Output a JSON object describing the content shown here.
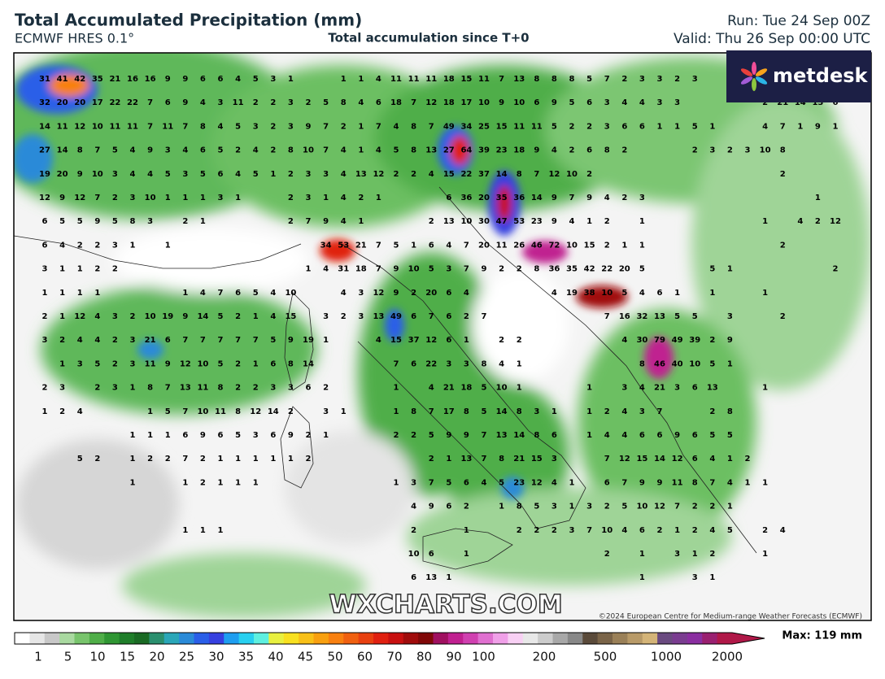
{
  "header": {
    "title": "Total Accumulated Precipitation (mm)",
    "model": "ECMWF HRES 0.1°",
    "subtitle": "Total accumulation since T+0",
    "run": "Run: Tue 24 Sep 00Z",
    "valid": "Valid: Thu 26 Sep 00:00 UTC"
  },
  "logo": "metdesk",
  "watermark": "WXCHARTS.COM",
  "copyright": "©2024 European Centre for Medium-range Weather Forecasts (ECMWF)",
  "max_label": "Max: 119 mm",
  "colorbar": {
    "labels": [
      1,
      5,
      10,
      15,
      20,
      25,
      30,
      35,
      40,
      45,
      50,
      60,
      70,
      80,
      90,
      100,
      200,
      500,
      1000,
      2000
    ],
    "colors": [
      "#ffffff",
      "#e6e6e6",
      "#c8c8c8",
      "#a9d9a0",
      "#78c46c",
      "#4fae48",
      "#2f9633",
      "#1f7e2a",
      "#1a6a24",
      "#2a8f6e",
      "#2aa6b8",
      "#2a8ad8",
      "#2a5ee8",
      "#3640e0",
      "#1e9ef0",
      "#28d0f0",
      "#5ef0e0",
      "#e8f040",
      "#f8e020",
      "#f8c018",
      "#f8a010",
      "#f88010",
      "#f06010",
      "#e84010",
      "#e02010",
      "#c81010",
      "#a00c0c",
      "#800808",
      "#a01060",
      "#c02090",
      "#d040b0",
      "#e070d0",
      "#f0a0e8",
      "#f8d0f4",
      "#e8e8e8",
      "#cccccc",
      "#a8a8a8",
      "#888888",
      "#5a4a3a",
      "#7a6448",
      "#9a8058",
      "#b89a68",
      "#d4b478",
      "#6a4a80",
      "#7a3c90",
      "#8a2ea0",
      "#9a2070",
      "#b01848"
    ]
  },
  "map": {
    "grid_values": [
      [
        31,
        41,
        42,
        35,
        21,
        16,
        16,
        9,
        9,
        6,
        6,
        4,
        5,
        3,
        1,
        null,
        null,
        1,
        1,
        4,
        11,
        11,
        11,
        18,
        15,
        11,
        7,
        13,
        8,
        8,
        8,
        5,
        7,
        2,
        3,
        3,
        2,
        3,
        null,
        null,
        null,
        null,
        null,
        null,
        null,
        null
      ],
      [
        32,
        20,
        20,
        17,
        22,
        22,
        7,
        6,
        9,
        4,
        3,
        11,
        2,
        2,
        3,
        2,
        5,
        8,
        4,
        6,
        18,
        7,
        12,
        18,
        17,
        10,
        9,
        10,
        6,
        9,
        5,
        6,
        3,
        4,
        4,
        3,
        3,
        null,
        null,
        null,
        null,
        2,
        21,
        14,
        13,
        6
      ],
      [
        14,
        11,
        12,
        10,
        11,
        11,
        7,
        11,
        7,
        8,
        4,
        5,
        3,
        2,
        3,
        9,
        7,
        2,
        1,
        7,
        4,
        8,
        7,
        49,
        34,
        25,
        15,
        11,
        11,
        5,
        2,
        2,
        3,
        6,
        6,
        1,
        1,
        5,
        1,
        null,
        null,
        4,
        7,
        1,
        9,
        1
      ],
      [
        27,
        14,
        8,
        7,
        5,
        4,
        9,
        3,
        4,
        6,
        5,
        2,
        4,
        2,
        8,
        10,
        7,
        4,
        1,
        4,
        5,
        8,
        13,
        27,
        64,
        39,
        23,
        18,
        9,
        4,
        2,
        6,
        8,
        2,
        null,
        null,
        null,
        2,
        3,
        2,
        3,
        10,
        8,
        null,
        null,
        null
      ],
      [
        19,
        20,
        9,
        10,
        3,
        4,
        4,
        5,
        3,
        5,
        6,
        4,
        5,
        1,
        2,
        3,
        3,
        4,
        13,
        12,
        2,
        2,
        4,
        15,
        22,
        37,
        14,
        8,
        7,
        12,
        10,
        2,
        null,
        null,
        null,
        null,
        null,
        null,
        null,
        null,
        null,
        null,
        2,
        null,
        null,
        null
      ],
      [
        12,
        9,
        12,
        7,
        2,
        3,
        10,
        1,
        1,
        1,
        3,
        1,
        null,
        null,
        2,
        3,
        1,
        4,
        2,
        1,
        null,
        null,
        null,
        6,
        36,
        20,
        35,
        36,
        14,
        9,
        7,
        9,
        4,
        2,
        3,
        null,
        null,
        null,
        null,
        null,
        null,
        null,
        null,
        null,
        1,
        null
      ],
      [
        6,
        5,
        5,
        9,
        5,
        8,
        3,
        null,
        2,
        1,
        null,
        null,
        null,
        null,
        2,
        7,
        9,
        4,
        1,
        null,
        null,
        null,
        2,
        13,
        10,
        30,
        47,
        53,
        23,
        9,
        4,
        1,
        2,
        null,
        1,
        null,
        null,
        null,
        null,
        null,
        null,
        1,
        null,
        4,
        2,
        12
      ],
      [
        6,
        4,
        2,
        2,
        3,
        1,
        null,
        1,
        null,
        null,
        null,
        null,
        null,
        null,
        null,
        null,
        34,
        53,
        21,
        7,
        5,
        1,
        6,
        4,
        7,
        20,
        11,
        26,
        46,
        72,
        10,
        15,
        2,
        1,
        1,
        null,
        null,
        null,
        null,
        null,
        null,
        null,
        2,
        null,
        null,
        null
      ],
      [
        3,
        1,
        1,
        2,
        2,
        null,
        null,
        null,
        null,
        null,
        null,
        null,
        null,
        null,
        null,
        1,
        4,
        31,
        18,
        7,
        9,
        10,
        5,
        3,
        7,
        9,
        2,
        2,
        8,
        36,
        35,
        42,
        22,
        20,
        5,
        null,
        null,
        null,
        5,
        1,
        null,
        null,
        null,
        null,
        null,
        2
      ],
      [
        1,
        1,
        1,
        1,
        null,
        null,
        null,
        null,
        1,
        4,
        7,
        6,
        5,
        4,
        10,
        null,
        null,
        4,
        3,
        12,
        9,
        2,
        20,
        6,
        4,
        null,
        null,
        null,
        null,
        4,
        19,
        38,
        10,
        5,
        4,
        6,
        1,
        null,
        1,
        null,
        null,
        1,
        null,
        null,
        null,
        null
      ],
      [
        2,
        1,
        12,
        4,
        3,
        2,
        10,
        19,
        9,
        14,
        5,
        2,
        1,
        4,
        15,
        null,
        3,
        2,
        3,
        13,
        49,
        6,
        7,
        6,
        2,
        7,
        null,
        null,
        null,
        null,
        null,
        null,
        7,
        16,
        32,
        13,
        5,
        5,
        null,
        3,
        null,
        null,
        2,
        null,
        null,
        null
      ],
      [
        3,
        2,
        4,
        4,
        2,
        3,
        21,
        6,
        7,
        7,
        7,
        7,
        7,
        5,
        9,
        19,
        1,
        null,
        null,
        4,
        15,
        37,
        12,
        6,
        1,
        null,
        2,
        2,
        null,
        null,
        null,
        null,
        null,
        4,
        30,
        79,
        49,
        39,
        2,
        9,
        null,
        null,
        null,
        null,
        null,
        null
      ],
      [
        null,
        1,
        3,
        5,
        2,
        3,
        11,
        9,
        12,
        10,
        5,
        2,
        1,
        6,
        8,
        14,
        null,
        null,
        null,
        null,
        7,
        6,
        22,
        3,
        3,
        8,
        4,
        1,
        null,
        null,
        null,
        null,
        null,
        null,
        8,
        46,
        40,
        10,
        5,
        1,
        null,
        null,
        null,
        null,
        null,
        null
      ],
      [
        2,
        3,
        null,
        2,
        3,
        1,
        8,
        7,
        13,
        11,
        8,
        2,
        2,
        3,
        3,
        6,
        2,
        null,
        null,
        null,
        1,
        null,
        4,
        21,
        18,
        5,
        10,
        1,
        null,
        null,
        null,
        1,
        null,
        3,
        4,
        21,
        3,
        6,
        13,
        null,
        null,
        1,
        null,
        null,
        null,
        null
      ],
      [
        1,
        2,
        4,
        null,
        null,
        null,
        1,
        5,
        7,
        10,
        11,
        8,
        12,
        14,
        2,
        null,
        3,
        1,
        null,
        null,
        1,
        8,
        7,
        17,
        8,
        5,
        14,
        8,
        3,
        1,
        null,
        1,
        2,
        4,
        3,
        7,
        null,
        null,
        2,
        8,
        null,
        null,
        null,
        null,
        null,
        null
      ],
      [
        null,
        null,
        null,
        null,
        null,
        1,
        1,
        1,
        6,
        9,
        6,
        5,
        3,
        6,
        9,
        2,
        1,
        null,
        null,
        null,
        2,
        2,
        5,
        9,
        9,
        7,
        13,
        14,
        8,
        6,
        null,
        1,
        4,
        4,
        6,
        6,
        9,
        6,
        5,
        5,
        null,
        null,
        null,
        null,
        null,
        null
      ],
      [
        null,
        null,
        5,
        2,
        null,
        1,
        2,
        2,
        7,
        2,
        1,
        1,
        1,
        1,
        1,
        2,
        null,
        null,
        null,
        null,
        null,
        null,
        2,
        1,
        13,
        7,
        8,
        21,
        15,
        3,
        null,
        null,
        7,
        12,
        15,
        14,
        12,
        6,
        4,
        1,
        2,
        null,
        null,
        null,
        null,
        null
      ],
      [
        null,
        null,
        null,
        null,
        null,
        1,
        null,
        null,
        1,
        2,
        1,
        1,
        1,
        null,
        null,
        null,
        null,
        null,
        null,
        null,
        1,
        3,
        7,
        5,
        6,
        4,
        5,
        23,
        12,
        4,
        1,
        null,
        6,
        7,
        9,
        9,
        11,
        8,
        7,
        4,
        1,
        1,
        null,
        null,
        null,
        null
      ],
      [
        null,
        null,
        null,
        null,
        null,
        null,
        null,
        null,
        null,
        null,
        null,
        null,
        null,
        null,
        null,
        null,
        null,
        null,
        null,
        null,
        null,
        4,
        9,
        6,
        2,
        null,
        1,
        8,
        5,
        3,
        1,
        3,
        2,
        5,
        10,
        12,
        7,
        2,
        2,
        1,
        null,
        null,
        null,
        null,
        null,
        null
      ],
      [
        null,
        null,
        null,
        null,
        null,
        null,
        null,
        null,
        1,
        1,
        1,
        null,
        null,
        null,
        null,
        null,
        null,
        null,
        null,
        null,
        null,
        2,
        null,
        null,
        1,
        null,
        null,
        2,
        2,
        2,
        3,
        7,
        10,
        4,
        6,
        2,
        1,
        2,
        4,
        5,
        null,
        2,
        4,
        null,
        null,
        null
      ],
      [
        null,
        null,
        null,
        null,
        null,
        null,
        null,
        null,
        null,
        null,
        null,
        null,
        null,
        null,
        null,
        null,
        null,
        null,
        null,
        null,
        null,
        10,
        6,
        null,
        1,
        null,
        null,
        null,
        null,
        null,
        null,
        null,
        2,
        null,
        1,
        null,
        3,
        1,
        2,
        null,
        null,
        1,
        null,
        null,
        null,
        null
      ],
      [
        null,
        null,
        null,
        null,
        null,
        null,
        null,
        null,
        null,
        null,
        null,
        null,
        null,
        null,
        null,
        null,
        null,
        null,
        null,
        null,
        null,
        6,
        13,
        1,
        null,
        null,
        null,
        null,
        null,
        null,
        null,
        null,
        null,
        null,
        1,
        null,
        null,
        3,
        1,
        null,
        null,
        null,
        null,
        null,
        null,
        null
      ]
    ]
  }
}
